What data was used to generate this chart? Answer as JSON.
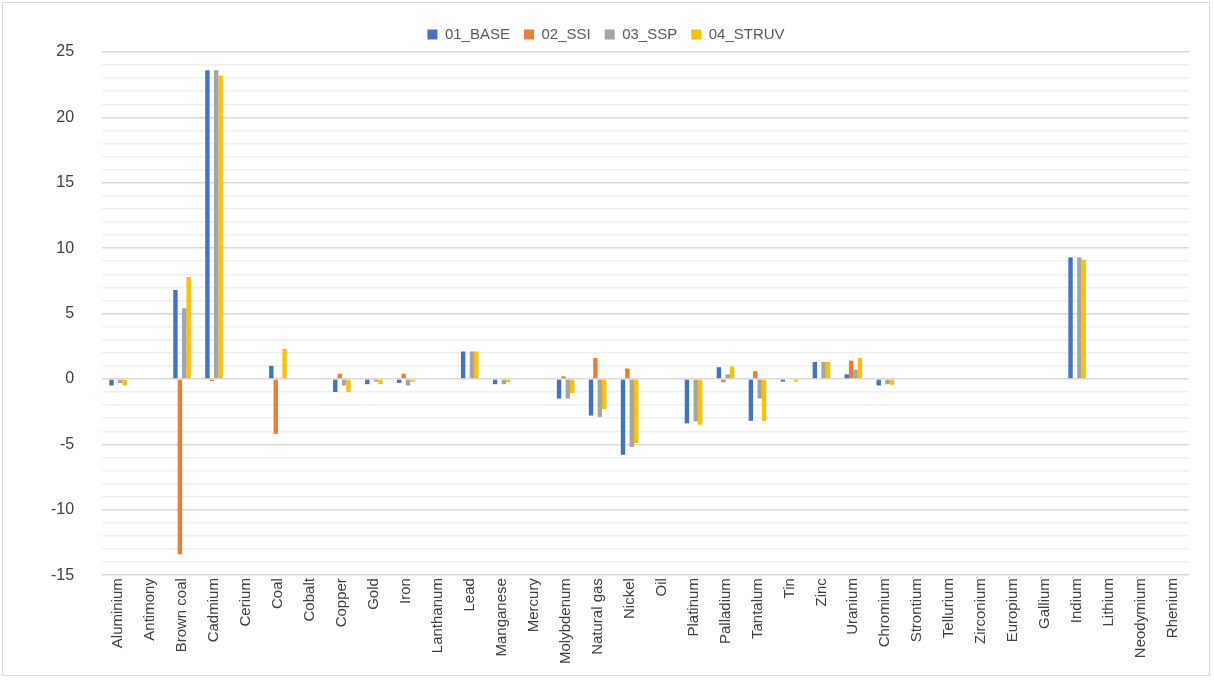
{
  "chart_data": {
    "type": "bar",
    "categories": [
      "Aluminium",
      "Antimony",
      "Brown coal",
      "Cadmium",
      "Cerium",
      "Coal",
      "Cobalt",
      "Copper",
      "Gold",
      "Iron",
      "Lanthanum",
      "Lead",
      "Manganese",
      "Mercury",
      "Molybdenum",
      "Natural gas",
      "Nickel",
      "Oil",
      "Platinum",
      "Palladium",
      "Tantalum",
      "Tin",
      "Zinc",
      "Uranium",
      "Chromium",
      "Strontium",
      "Tellurium",
      "Zirconium",
      "Europium",
      "Gallium",
      "Indium",
      "Lithium",
      "Neodymium",
      "Rhenium"
    ],
    "series": [
      {
        "name": "01_BASE",
        "color": "#4472c4",
        "values": [
          -0.5,
          0,
          6.8,
          23.6,
          0,
          1.0,
          0,
          -1.0,
          -0.4,
          -0.3,
          0,
          2.1,
          -0.4,
          0,
          -1.5,
          -2.8,
          -5.8,
          0,
          -3.4,
          0.9,
          -3.2,
          -0.2,
          1.3,
          0.35,
          -0.5,
          0,
          0,
          0,
          0,
          0,
          9.3,
          0,
          0,
          0
        ]
      },
      {
        "name": "02_SSI",
        "color": "#ed7d31",
        "values": [
          0,
          0,
          -13.4,
          -0.15,
          0,
          -4.2,
          0,
          0.4,
          0,
          0.4,
          0,
          0,
          0,
          0,
          0.2,
          1.6,
          0.8,
          0,
          0,
          -0.25,
          0.6,
          0,
          0,
          1.4,
          0,
          0,
          0,
          0,
          0,
          0,
          0,
          0,
          0,
          0
        ]
      },
      {
        "name": "03_SSP",
        "color": "#a5a5a5",
        "values": [
          -0.3,
          0,
          5.4,
          23.6,
          0,
          0,
          0,
          -0.5,
          -0.2,
          -0.5,
          0,
          2.1,
          -0.4,
          0,
          -1.5,
          -2.9,
          -5.2,
          null,
          -3.25,
          0.35,
          -1.5,
          0,
          1.3,
          0.7,
          -0.4,
          0,
          0,
          0,
          0,
          0,
          9.3,
          0,
          0,
          0
        ]
      },
      {
        "name": "04_STRUV",
        "color": "#ffc000",
        "values": [
          -0.5,
          0,
          7.8,
          23.2,
          0,
          2.3,
          0,
          -1.0,
          -0.4,
          -0.2,
          0,
          2.1,
          -0.25,
          0,
          -1.1,
          -2.3,
          -4.9,
          0,
          -3.5,
          0.95,
          -3.2,
          -0.2,
          1.3,
          1.6,
          -0.45,
          0,
          0,
          0,
          0,
          0,
          9.1,
          0,
          0,
          0
        ]
      }
    ],
    "ylim": [
      -15,
      25
    ],
    "yticks": [
      -15,
      {
        "value": -14,
        "label": null
      },
      {
        "value": -13,
        "label": null
      },
      {
        "value": -12,
        "label": null
      },
      {
        "value": -11,
        "label": null
      },
      -10,
      {
        "value": -9,
        "label": null
      },
      {
        "value": -8,
        "label": null
      },
      {
        "value": -7,
        "label": null
      },
      {
        "value": -6,
        "label": null
      },
      -5,
      {
        "value": -4,
        "label": null
      },
      {
        "value": -3,
        "label": null
      },
      {
        "value": -2,
        "label": null
      },
      {
        "value": -1,
        "label": null
      },
      0,
      {
        "value": 1,
        "label": null
      },
      {
        "value": 2,
        "label": null
      },
      {
        "value": 3,
        "label": null
      },
      {
        "value": 4,
        "label": null
      },
      5,
      {
        "value": 6,
        "label": null
      },
      {
        "value": 7,
        "label": null
      },
      {
        "value": 8,
        "label": null
      },
      {
        "value": 9,
        "label": null
      },
      10,
      {
        "value": 11,
        "label": null
      },
      {
        "value": 12,
        "label": null
      },
      {
        "value": 13,
        "label": null
      },
      {
        "value": 14,
        "label": null
      },
      15,
      {
        "value": 16,
        "label": null
      },
      {
        "value": 17,
        "label": null
      },
      {
        "value": 18,
        "label": null
      },
      {
        "value": 19,
        "label": null
      },
      20,
      {
        "value": 21,
        "label": null
      },
      {
        "value": 22,
        "label": null
      },
      {
        "value": 23,
        "label": null
      },
      {
        "value": 24,
        "label": null
      },
      25
    ],
    "grid": "y",
    "legend": "top"
  }
}
